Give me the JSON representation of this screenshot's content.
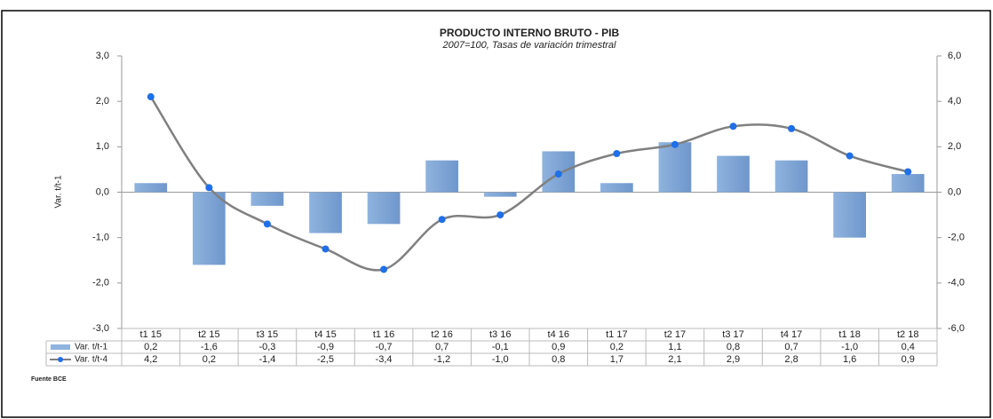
{
  "chart_data": {
    "type": "bar_line",
    "title": "PRODUCTO INTERNO BRUTO - PIB",
    "subtitle": "2007=100, Tasas de variación trimestral",
    "y_label": "Var. t/t-1",
    "source": "Fuente BCE",
    "categories": [
      "t1 15",
      "t2 15",
      "t3 15",
      "t4 15",
      "t1 16",
      "t2 16",
      "t3 16",
      "t4 16",
      "t1 17",
      "t2 17",
      "t3 17",
      "t4 17",
      "t1 18",
      "t2 18"
    ],
    "series": [
      {
        "name": "Var. t/t-1",
        "type": "bar",
        "color": "#8fb3de",
        "values": [
          0.2,
          -1.6,
          -0.3,
          -0.9,
          -0.7,
          0.7,
          -0.1,
          0.9,
          0.2,
          1.1,
          0.8,
          0.7,
          -1.0,
          0.4
        ],
        "value_labels": [
          "0,2",
          "-1,6",
          "-0,3",
          "-0,9",
          "-0,7",
          "0,7",
          "-0,1",
          "0,9",
          "0,2",
          "1,1",
          "0,8",
          "0,7",
          "-1,0",
          "0,4"
        ]
      },
      {
        "name": "Var. t/t-4",
        "type": "line",
        "axis": "y2",
        "color": "#808080",
        "marker_color": "#1f6fe8",
        "values": [
          4.2,
          0.2,
          -1.4,
          -2.5,
          -3.4,
          -1.2,
          -1.0,
          0.8,
          1.7,
          2.1,
          2.9,
          2.8,
          1.6,
          0.9
        ],
        "value_labels": [
          "4,2",
          "0,2",
          "-1,4",
          "-2,5",
          "-3,4",
          "-1,2",
          "-1,0",
          "0,8",
          "1,7",
          "2,1",
          "2,9",
          "2,8",
          "1,6",
          "0,9"
        ]
      }
    ],
    "ylim": [
      -3,
      3
    ],
    "yticks": [
      {
        "value": -3,
        "label": "-3,0"
      },
      {
        "value": -2,
        "label": "-2,0"
      },
      {
        "value": -1,
        "label": "-1,0"
      },
      {
        "value": 0,
        "label": "0,0"
      },
      {
        "value": 1,
        "label": "1,0"
      },
      {
        "value": 2,
        "label": "2,0"
      },
      {
        "value": 3,
        "label": "3,0"
      }
    ],
    "y2lim": [
      -6,
      6
    ],
    "y2ticks": [
      {
        "value": -6,
        "label": "-6,0"
      },
      {
        "value": -4,
        "label": "-4,0"
      },
      {
        "value": -2,
        "label": "-2,0"
      },
      {
        "value": 0,
        "label": "0,0"
      },
      {
        "value": 2,
        "label": "2,0"
      },
      {
        "value": 4,
        "label": "4,0"
      },
      {
        "value": 6,
        "label": "6,0"
      }
    ]
  }
}
